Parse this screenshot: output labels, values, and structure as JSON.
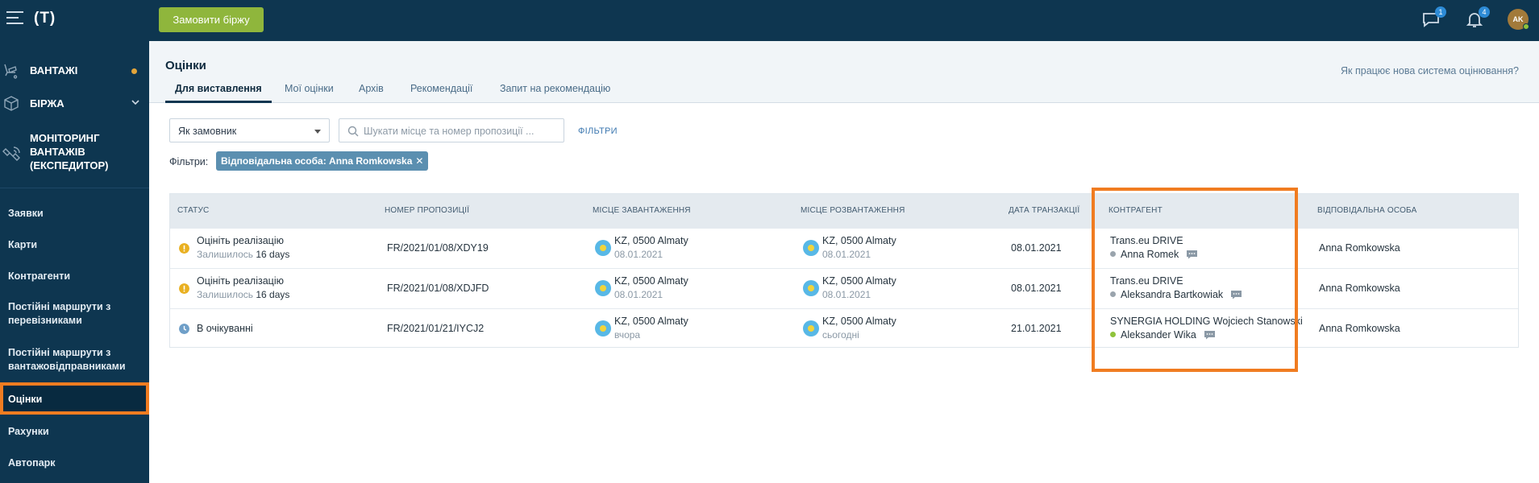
{
  "topbar": {
    "logo": "(T)",
    "order_button": "Замовити біржу",
    "messages_badge": "1",
    "notifications_badge": "4",
    "avatar_initials": "AK",
    "avatar_status_color": "#8fc33b"
  },
  "sidebar": {
    "main_items": [
      {
        "label": "ВАНТАЖІ",
        "icon": "cargo-icon",
        "indicator": "orange-dot"
      },
      {
        "label": "БІРЖА",
        "icon": "box-icon",
        "indicator": "chevron-down-icon"
      },
      {
        "label": "МОНІТОРИНГ ВАНТАЖІВ (ЕКСПЕДИТОР)",
        "icon": "satellite-icon"
      }
    ],
    "sub_items": [
      "Заявки",
      "Карти",
      "Контрагенти",
      "Постійні маршрути з перевізниками",
      "Постійні маршрути з вантажовідправниками",
      "Оцінки",
      "Рахунки",
      "Автопарк"
    ],
    "active_item": "Оцінки"
  },
  "page": {
    "title": "Оцінки",
    "help_link": "Як працює нова система оцінювання?",
    "tabs": [
      "Для виставлення",
      "Мої оцінки",
      "Архів",
      "Рекомендації",
      "Запит на рекомендацію"
    ],
    "active_tab": "Для виставлення"
  },
  "controls": {
    "role_select_value": "Як замовник",
    "search_placeholder": "Шукати місце та номер пропозиції ...",
    "filters_link": "ФІЛЬТРИ",
    "filters_label": "Фільтри:",
    "active_filter_chip": "Відповідальна особа: Anna Romkowska",
    "chip_remove": "✕"
  },
  "table": {
    "columns": [
      "Статус",
      "Номер пропозиції",
      "Місце завантаження",
      "Місце розвантаження",
      "Дата транзакції",
      "Контрагент",
      "Відповідальна особа"
    ],
    "rows": [
      {
        "status": "Оцініть реалізацію",
        "status_sub_prefix": "Залишилось",
        "status_sub_value": "16 days",
        "status_icon": "warning-icon",
        "status_color": "#e9b021",
        "offer": "FR/2021/01/08/XDY19",
        "load_place": "KZ, 0500 Almaty",
        "load_date": "08.01.2021",
        "unload_place": "KZ, 0500 Almaty",
        "unload_date": "08.01.2021",
        "transaction_date": "08.01.2021",
        "company": "Trans.eu DRIVE",
        "person": "Anna Romek",
        "person_status_color": "#9aa4ad",
        "responsible": "Anna Romkowska"
      },
      {
        "status": "Оцініть реалізацію",
        "status_sub_prefix": "Залишилось",
        "status_sub_value": "16 days",
        "status_icon": "warning-icon",
        "status_color": "#e9b021",
        "offer": "FR/2021/01/08/XDJFD",
        "load_place": "KZ, 0500 Almaty",
        "load_date": "08.01.2021",
        "unload_place": "KZ, 0500 Almaty",
        "unload_date": "08.01.2021",
        "transaction_date": "08.01.2021",
        "company": "Trans.eu DRIVE",
        "person": "Aleksandra Bartkowiak",
        "person_status_color": "#9aa4ad",
        "responsible": "Anna Romkowska"
      },
      {
        "status": "В очікуванні",
        "status_sub_prefix": "",
        "status_sub_value": "",
        "status_icon": "clock-icon",
        "status_color": "#6f9fc8",
        "offer": "FR/2021/01/21/IYCJ2",
        "load_place": "KZ, 0500 Almaty",
        "load_date": "вчора",
        "unload_place": "KZ, 0500 Almaty",
        "unload_date": "сьогодні",
        "transaction_date": "21.01.2021",
        "company": "SYNERGIA HOLDING Wojciech Stanowski",
        "person": "Aleksander Wika",
        "person_status_color": "#8fc33b",
        "responsible": "Anna Romkowska"
      }
    ]
  },
  "colors": {
    "navy": "#0e3650",
    "accent_green": "#8fb63c",
    "highlight_orange": "#f07c21",
    "chip_blue": "#5b8fb0"
  }
}
